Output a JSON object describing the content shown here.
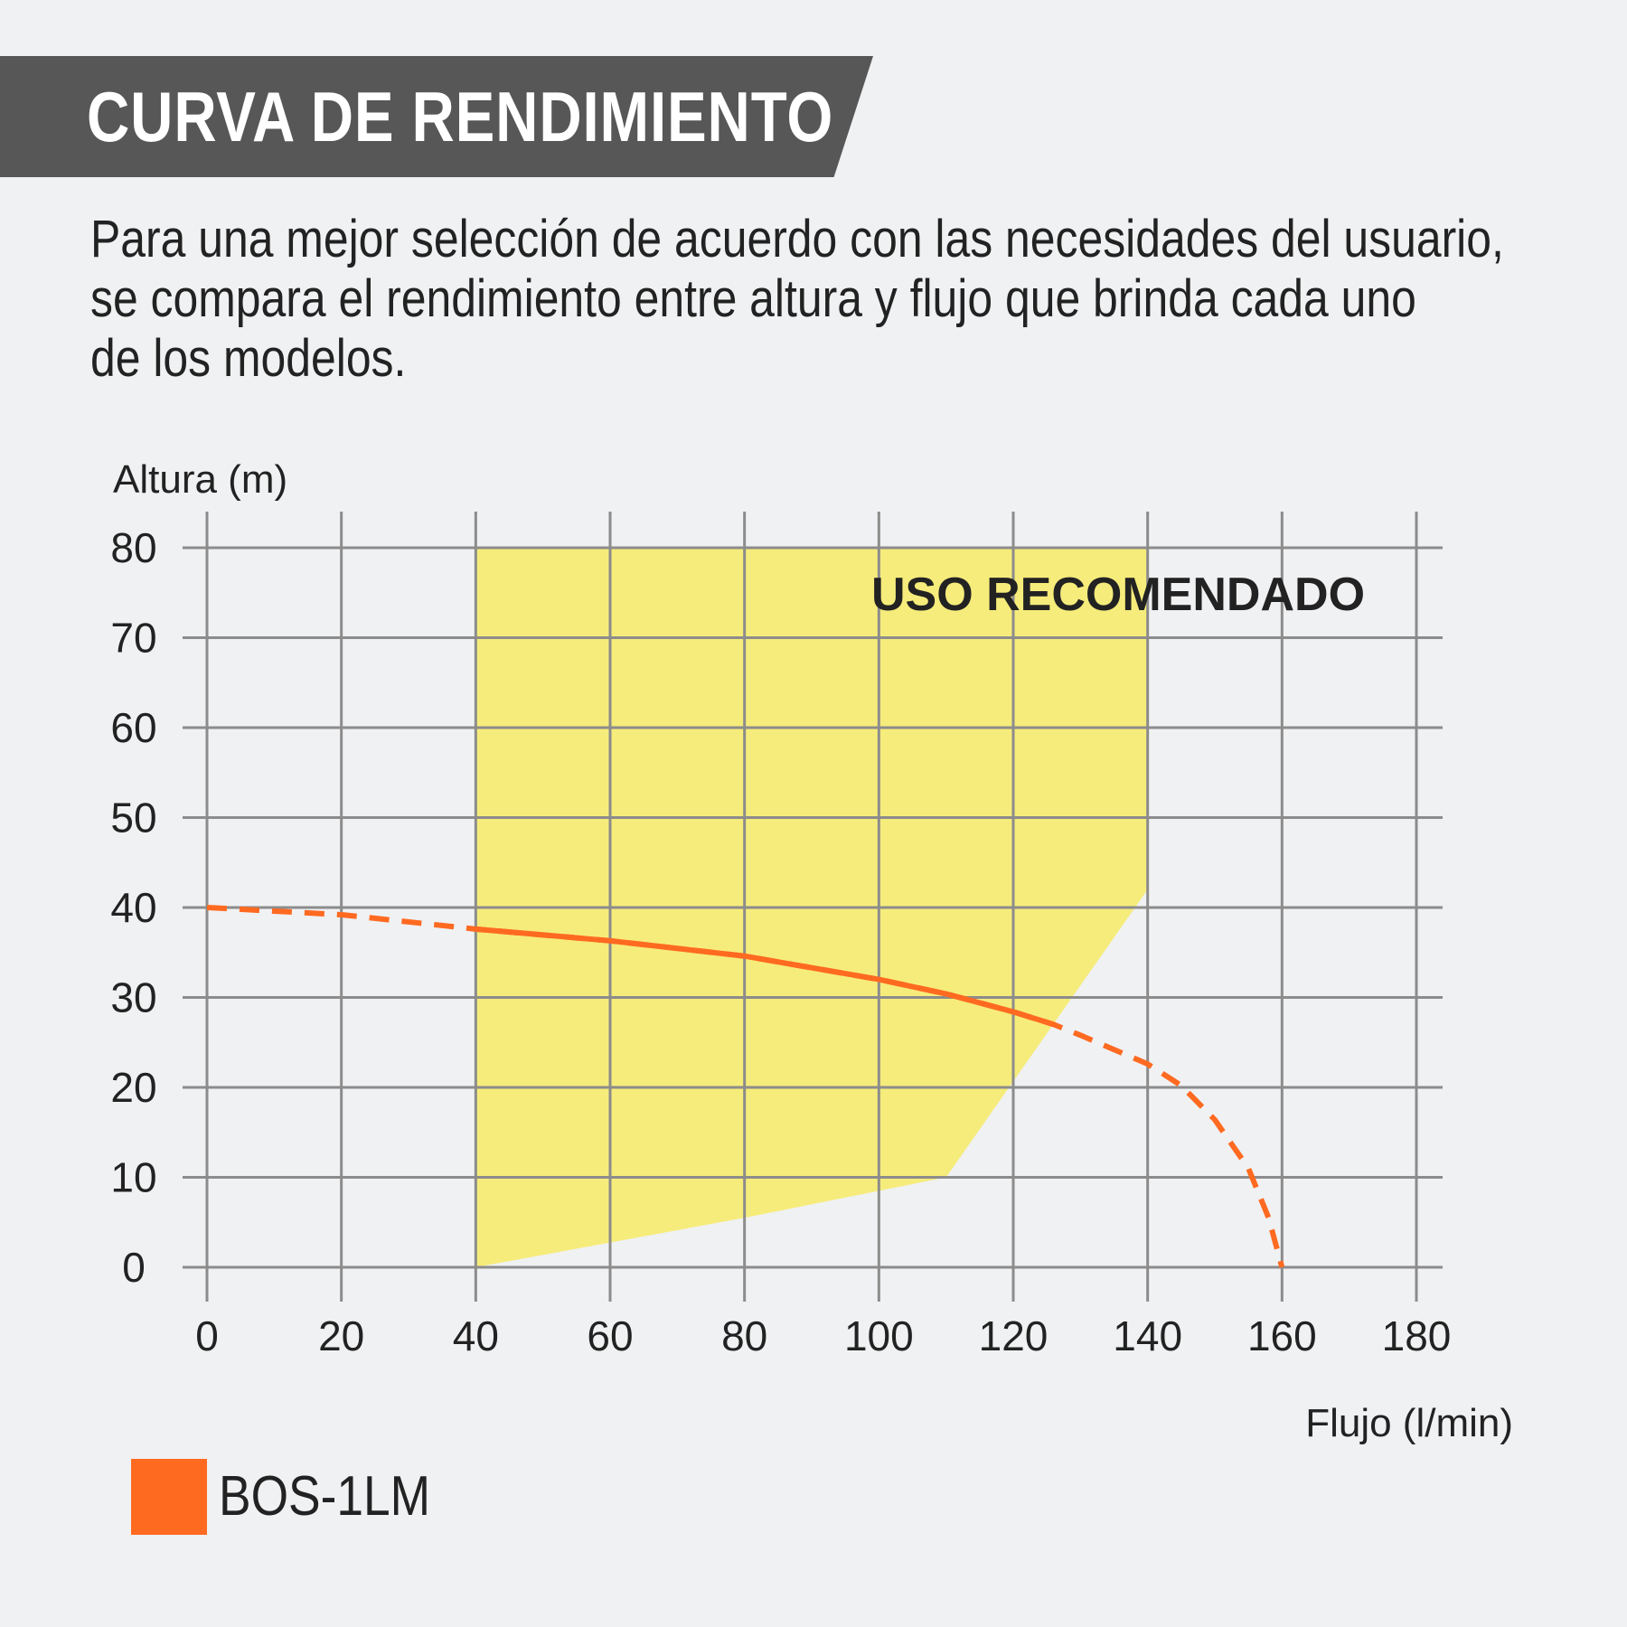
{
  "header": {
    "title": "CURVA DE RENDIMIENTO"
  },
  "description": {
    "lines": [
      "Para una mejor selección de acuerdo con las necesidades del usuario,",
      "se compara el rendimiento entre altura y flujo que brinda cada uno",
      "de los modelos."
    ]
  },
  "colors": {
    "banner": "#575757",
    "background": "#f0f1f2",
    "grid": "#8c8c8c",
    "zone": "#f6ec7b",
    "curve": "#ff6a21",
    "text": "#222222"
  },
  "chart_data": {
    "type": "line",
    "ylabel": "Altura (m)",
    "xlabel": "Flujo (l/min)",
    "xlim": [
      0,
      180
    ],
    "ylim": [
      0,
      80
    ],
    "x_ticks": [
      0,
      20,
      40,
      60,
      80,
      100,
      120,
      140,
      160,
      180
    ],
    "y_ticks": [
      0,
      10,
      20,
      30,
      40,
      50,
      60,
      70,
      80
    ],
    "grid": true,
    "recommended_zone": {
      "label": "USO RECOMENDADO",
      "polygon": [
        [
          40,
          80
        ],
        [
          140,
          80
        ],
        [
          140,
          42
        ],
        [
          110,
          10
        ],
        [
          80,
          5.5
        ],
        [
          40,
          0
        ]
      ]
    },
    "series": [
      {
        "name": "BOS-1LM",
        "color": "#ff6a21",
        "points": [
          [
            0,
            40
          ],
          [
            20,
            39.2
          ],
          [
            40,
            37.6
          ],
          [
            60,
            36.3
          ],
          [
            80,
            34.6
          ],
          [
            100,
            32
          ],
          [
            110,
            30.4
          ],
          [
            120,
            28.4
          ],
          [
            126,
            27
          ],
          [
            130,
            25.8
          ],
          [
            140,
            22.6
          ],
          [
            145,
            20.2
          ],
          [
            150,
            16.4
          ],
          [
            155,
            11
          ],
          [
            158,
            5.5
          ],
          [
            160,
            0
          ]
        ],
        "solid_range": [
          40,
          126
        ]
      }
    ]
  },
  "legend": {
    "items": [
      {
        "label": "BOS-1LM",
        "color": "#ff6a21"
      }
    ]
  }
}
